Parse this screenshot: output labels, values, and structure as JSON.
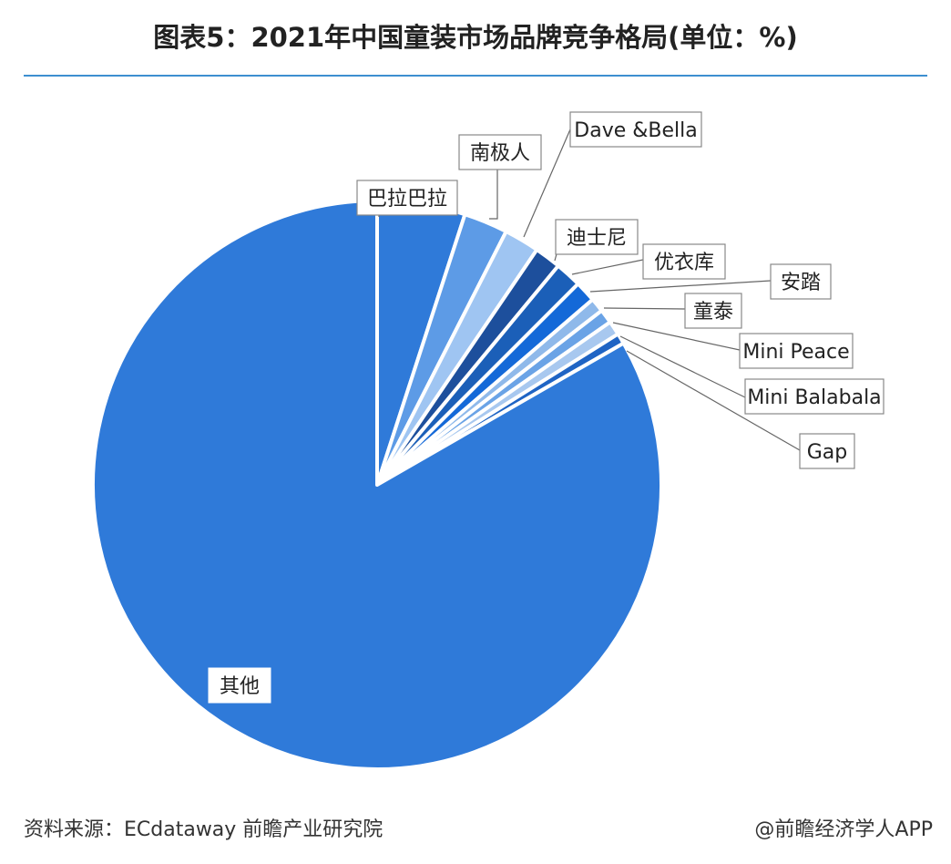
{
  "title": "图表5：2021年中国童装市场品牌竞争格局(单位：%)",
  "source": "资料来源：ECdataway 前瞻产业研究院",
  "credit": "@前瞻经济学人APP",
  "chart_data": {
    "type": "pie",
    "start_angle_deg": 0,
    "direction": "clockwise",
    "categories": [
      "巴拉巴拉",
      "南极人",
      "Dave &Bella",
      "迪士尼",
      "优衣库",
      "安踏",
      "童泰",
      "Mini Peace",
      "Mini Balabala",
      "Gap",
      "其他"
    ],
    "values": [
      5.0,
      2.5,
      2.0,
      1.5,
      1.5,
      1.2,
      0.8,
      0.8,
      0.8,
      0.6,
      83.3
    ],
    "colors": [
      "#2f7ad9",
      "#5d9be6",
      "#9fc5f2",
      "#1d4f9c",
      "#1b5fb8",
      "#1469d8",
      "#8fb9ea",
      "#6aa3e6",
      "#a8c8ef",
      "#1f64c4",
      "#2f7ad9"
    ],
    "data_labels": false
  }
}
